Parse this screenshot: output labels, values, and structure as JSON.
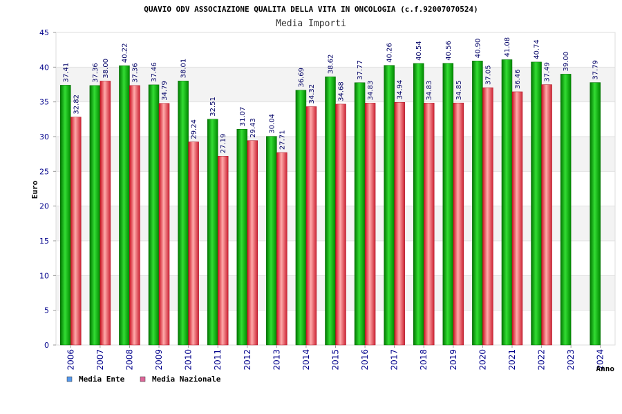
{
  "chart_data": {
    "type": "bar",
    "title": "QUAVIO ODV ASSOCIAZIONE QUALITA DELLA VITA IN ONCOLOGIA (c.f.92007070524)",
    "subtitle": "Media Importi",
    "xlabel": "Anno",
    "ylabel": "Euro",
    "ylim": [
      0,
      45
    ],
    "yticks": [
      0,
      5,
      10,
      15,
      20,
      25,
      30,
      35,
      40,
      45
    ],
    "grid": true,
    "legend_position": "bottom-left",
    "categories": [
      "2006",
      "2007",
      "2008",
      "2009",
      "2010",
      "2011",
      "2012",
      "2013",
      "2014",
      "2015",
      "2016",
      "2017",
      "2018",
      "2019",
      "2020",
      "2021",
      "2022",
      "2023",
      "2024"
    ],
    "series": [
      {
        "name": "Media Ente",
        "color": "#22bb22",
        "legend_color": "#5599ee",
        "values": [
          37.41,
          37.36,
          40.22,
          37.46,
          38.01,
          32.51,
          31.07,
          30.04,
          36.69,
          38.62,
          37.77,
          40.26,
          40.54,
          40.56,
          40.9,
          41.08,
          40.74,
          39.0,
          37.79
        ],
        "labels": [
          "37.41",
          "37.36",
          "40.22",
          "37.46",
          "38.01",
          "32.51",
          "31.07",
          "30.04",
          "36.69",
          "38.62",
          "37.77",
          "40.26",
          "40.54",
          "40.56",
          "40.90",
          "41.08",
          "40.74",
          "39.00",
          "37.79"
        ]
      },
      {
        "name": "Media Nazionale",
        "color": "#ee3344",
        "legend_color": "#dd6699",
        "values": [
          32.82,
          38.0,
          37.36,
          34.79,
          29.24,
          27.19,
          29.43,
          27.71,
          34.32,
          34.68,
          34.83,
          34.94,
          34.83,
          34.85,
          37.05,
          36.46,
          37.49,
          null,
          null
        ],
        "labels": [
          "32.82",
          "38.00",
          "37.36",
          "34.79",
          "29.24",
          "27.19",
          "29.43",
          "27.71",
          "34.32",
          "34.68",
          "34.83",
          "34.94",
          "34.83",
          "34.85",
          "37.05",
          "36.46",
          "37.49",
          "",
          ""
        ]
      }
    ]
  }
}
